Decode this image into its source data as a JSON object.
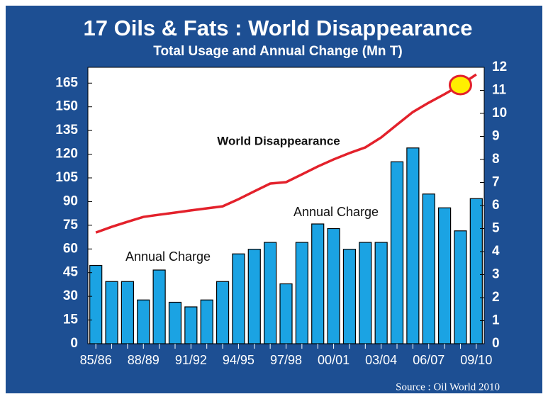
{
  "chart_data": {
    "type": "bar",
    "title": "17 Oils & Fats : World Disappearance",
    "subtitle": "Total Usage and Annual Change (Mn T)",
    "source": "Source : Oil World 2010",
    "annotations": [
      "World Disappearance",
      "Annual Charge",
      "Annual Charge"
    ],
    "categories": [
      "85/86",
      null,
      null,
      "88/89",
      null,
      null,
      "91/92",
      null,
      null,
      "94/95",
      null,
      null,
      "97/98",
      null,
      null,
      "00/01",
      null,
      null,
      "03/04",
      null,
      null,
      "06/07",
      null,
      null,
      "09/10"
    ],
    "series": [
      {
        "name": "World Disappearance",
        "type": "line",
        "axis": "y",
        "color": "#e3212b",
        "values": [
          70.4,
          74,
          77.2,
          80.3,
          81.7,
          83,
          84.4,
          85.7,
          87,
          91.5,
          96.5,
          101.4,
          102.3,
          107.2,
          112.2,
          116.7,
          120.7,
          124.3,
          130.6,
          138.7,
          146.7,
          152.6,
          158,
          163.8,
          170.5
        ]
      },
      {
        "name": "Annual Charge",
        "type": "bar",
        "axis": "y2",
        "color": "#1ba3e3",
        "values": [
          3.4,
          2.7,
          2.7,
          1.9,
          3.2,
          1.8,
          1.6,
          1.9,
          2.7,
          3.9,
          4.1,
          4.4,
          2.6,
          4.4,
          5.2,
          5.0,
          4.1,
          4.4,
          4.4,
          7.9,
          8.5,
          6.5,
          5.9,
          4.9,
          6.3
        ]
      }
    ],
    "ylim": [
      0,
      175
    ],
    "yticks": [
      0,
      15,
      30,
      45,
      60,
      75,
      90,
      105,
      120,
      135,
      150,
      165
    ],
    "y2lim": [
      0,
      12
    ],
    "y2ticks": [
      0,
      1,
      2,
      3,
      4,
      5,
      6,
      7,
      8,
      9,
      10,
      11,
      12
    ]
  }
}
